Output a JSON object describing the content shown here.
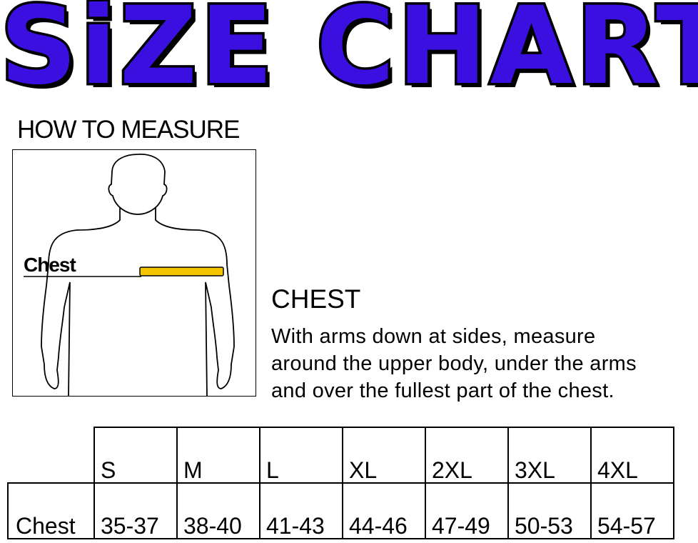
{
  "title": "SiZE CHART",
  "title_color": "#3b0fe0",
  "how_to_measure": "HOW TO MEASURE",
  "figure": {
    "chest_label": "Chest",
    "tape_color": "#f5c400"
  },
  "chest_heading": "CHEST",
  "chest_description": [
    "With arms down at sides, measure",
    "around the upper body, under the arms",
    "and over the fullest part of the chest."
  ],
  "table": {
    "sizes": [
      "S",
      "M",
      "L",
      "XL",
      "2XL",
      "3XL",
      "4XL"
    ],
    "rows": [
      {
        "label": "Chest",
        "values": [
          "35-37",
          "38-40",
          "41-43",
          "44-46",
          "47-49",
          "50-53",
          "54-57"
        ]
      }
    ]
  }
}
